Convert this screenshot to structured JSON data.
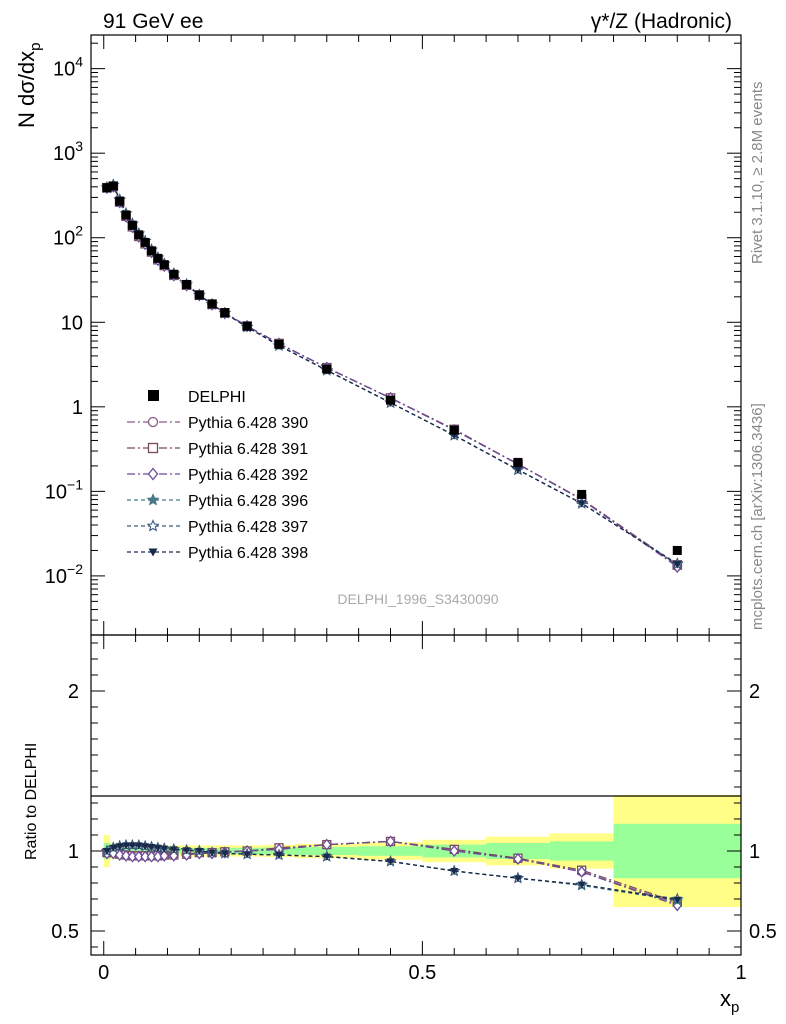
{
  "header": {
    "left": "91 GeV ee",
    "right": "γ*/Z (Hadronic)"
  },
  "side_text": {
    "rivet": "Rivet 3.1.10, ≥ 2.8M events",
    "site": "mcplots.cern.ch [arXiv:1306.3436]"
  },
  "watermark": "DELPHI_1996_S3430090",
  "colors": {
    "band_inner": "#99ff99",
    "band_outer": "#ffff88",
    "data": "#000000",
    "p390": "#8a5a8a",
    "p391": "#7a4a5a",
    "p392": "#6a4a9a",
    "p396": "#4a7a8a",
    "p397": "#3a5a7a",
    "p398": "#1a2a4a"
  },
  "chart_data": [
    {
      "type": "scatter",
      "name": "main",
      "ylabel": "N dσ/dx_p",
      "yscale": "log",
      "ylim": [
        0.002,
        25000
      ],
      "xlim": [
        -0.02,
        1.0
      ],
      "y_tick_labels": [
        "10^-2",
        "10^-1",
        "1",
        "10",
        "10^2",
        "10^3",
        "10^4"
      ],
      "legend": [
        "DELPHI",
        "Pythia 6.428 390",
        "Pythia 6.428 391",
        "Pythia 6.428 392",
        "Pythia 6.428 396",
        "Pythia 6.428 397",
        "Pythia 6.428 398"
      ],
      "x": [
        0.005,
        0.015,
        0.025,
        0.035,
        0.045,
        0.055,
        0.065,
        0.075,
        0.085,
        0.095,
        0.11,
        0.13,
        0.15,
        0.17,
        0.19,
        0.225,
        0.275,
        0.35,
        0.45,
        0.55,
        0.65,
        0.75,
        0.9
      ],
      "data": [
        390,
        410,
        270,
        185,
        140,
        108,
        88,
        70,
        57,
        48,
        37,
        28,
        21,
        16.5,
        13,
        9,
        5.5,
        2.8,
        1.2,
        0.53,
        0.22,
        0.092,
        0.02
      ],
      "series": [
        {
          "name": "Pythia 6.428 390",
          "color_key": "p390",
          "marker": "circle-open",
          "dash": "8,3,2,3",
          "values": [
            390,
            405,
            265,
            180,
            135,
            104,
            85,
            68,
            55,
            47,
            36,
            27.5,
            21,
            16.3,
            12.9,
            9,
            5.6,
            2.9,
            1.27,
            0.54,
            0.21,
            0.081,
            0.013
          ]
        },
        {
          "name": "Pythia 6.428 391",
          "color_key": "p391",
          "marker": "square-open",
          "dash": "8,3,2,3",
          "values": [
            390,
            405,
            265,
            180,
            135,
            104,
            85,
            68,
            55,
            47,
            36,
            27.5,
            21,
            16.3,
            12.9,
            9,
            5.6,
            2.9,
            1.27,
            0.54,
            0.21,
            0.081,
            0.0135
          ]
        },
        {
          "name": "Pythia 6.428 392",
          "color_key": "p392",
          "marker": "diamond-open",
          "dash": "8,3,2,3",
          "values": [
            388,
            403,
            263,
            178,
            134,
            103,
            84,
            67.5,
            54.5,
            46.5,
            35.8,
            27.3,
            20.9,
            16.2,
            12.8,
            9,
            5.6,
            2.9,
            1.27,
            0.53,
            0.21,
            0.08,
            0.0128
          ]
        },
        {
          "name": "Pythia 6.428 396",
          "color_key": "p396",
          "marker": "star-filled",
          "dash": "4,3",
          "values": [
            392,
            420,
            282,
            193,
            146,
            112,
            91,
            72,
            58,
            49,
            37.5,
            28,
            21,
            16.3,
            12.8,
            8.8,
            5.3,
            2.7,
            1.12,
            0.46,
            0.18,
            0.072,
            0.014
          ]
        },
        {
          "name": "Pythia 6.428 397",
          "color_key": "p397",
          "marker": "star-open",
          "dash": "4,3",
          "values": [
            392,
            420,
            282,
            193,
            146,
            112,
            91,
            72,
            58,
            49,
            37.5,
            28,
            21,
            16.3,
            12.8,
            8.8,
            5.3,
            2.7,
            1.12,
            0.46,
            0.18,
            0.072,
            0.0138
          ]
        },
        {
          "name": "Pythia 6.428 398",
          "color_key": "p398",
          "marker": "triangle-down",
          "dash": "4,3",
          "values": [
            392,
            420,
            282,
            193,
            146,
            112,
            91,
            72,
            58,
            49,
            37.5,
            28,
            21,
            16.3,
            12.8,
            8.8,
            5.3,
            2.7,
            1.12,
            0.46,
            0.18,
            0.072,
            0.0137
          ]
        }
      ]
    },
    {
      "type": "scatter",
      "name": "ratio",
      "ylabel": "Ratio to DELPHI",
      "xlabel": "x_p",
      "ylim": [
        0.35,
        2.35
      ],
      "xlim": [
        -0.02,
        1.0
      ],
      "x_tick_labels": [
        "0",
        "0.5",
        "1"
      ],
      "y_tick_labels": [
        "0.5",
        "1",
        "2"
      ],
      "bands": {
        "edges": [
          0.0,
          0.01,
          0.02,
          0.03,
          0.04,
          0.05,
          0.06,
          0.07,
          0.08,
          0.09,
          0.1,
          0.12,
          0.14,
          0.16,
          0.18,
          0.2,
          0.25,
          0.3,
          0.4,
          0.5,
          0.6,
          0.7,
          0.8,
          1.0
        ],
        "inner": [
          0.05,
          0.025,
          0.02,
          0.018,
          0.018,
          0.018,
          0.018,
          0.018,
          0.018,
          0.018,
          0.018,
          0.02,
          0.02,
          0.02,
          0.02,
          0.02,
          0.022,
          0.025,
          0.03,
          0.04,
          0.05,
          0.06,
          0.17
        ],
        "outer": [
          0.1,
          0.05,
          0.04,
          0.035,
          0.035,
          0.035,
          0.035,
          0.035,
          0.035,
          0.035,
          0.035,
          0.035,
          0.035,
          0.035,
          0.035,
          0.035,
          0.038,
          0.045,
          0.055,
          0.07,
          0.09,
          0.11,
          0.35
        ]
      },
      "series": [
        {
          "name": "Pythia 6.428 390",
          "values": [
            0.99,
            0.99,
            0.98,
            0.975,
            0.97,
            0.97,
            0.97,
            0.97,
            0.97,
            0.975,
            0.975,
            0.98,
            0.99,
            0.99,
            0.995,
            1.0,
            1.01,
            1.04,
            1.06,
            1.01,
            0.95,
            0.87,
            0.67
          ]
        },
        {
          "name": "Pythia 6.428 391",
          "values": [
            0.99,
            0.99,
            0.98,
            0.975,
            0.97,
            0.97,
            0.97,
            0.97,
            0.97,
            0.975,
            0.975,
            0.98,
            0.99,
            0.99,
            0.995,
            1.0,
            1.02,
            1.04,
            1.06,
            1.01,
            0.955,
            0.88,
            0.68
          ]
        },
        {
          "name": "Pythia 6.428 392",
          "values": [
            0.985,
            0.985,
            0.975,
            0.97,
            0.965,
            0.965,
            0.965,
            0.965,
            0.965,
            0.97,
            0.97,
            0.975,
            0.985,
            0.985,
            0.99,
            1.0,
            1.01,
            1.04,
            1.06,
            1.0,
            0.95,
            0.87,
            0.66
          ]
        },
        {
          "name": "Pythia 6.428 396",
          "values": [
            1.0,
            1.02,
            1.03,
            1.035,
            1.035,
            1.035,
            1.03,
            1.025,
            1.02,
            1.015,
            1.01,
            1.005,
            1.0,
            0.99,
            0.985,
            0.98,
            0.975,
            0.965,
            0.935,
            0.875,
            0.83,
            0.785,
            0.69
          ]
        },
        {
          "name": "Pythia 6.428 397",
          "values": [
            1.0,
            1.02,
            1.03,
            1.035,
            1.035,
            1.035,
            1.03,
            1.025,
            1.02,
            1.015,
            1.01,
            1.005,
            1.0,
            0.99,
            0.985,
            0.98,
            0.975,
            0.965,
            0.935,
            0.875,
            0.83,
            0.79,
            0.7
          ]
        },
        {
          "name": "Pythia 6.428 398",
          "values": [
            1.0,
            1.02,
            1.03,
            1.035,
            1.035,
            1.035,
            1.03,
            1.025,
            1.02,
            1.015,
            1.01,
            1.005,
            1.0,
            0.99,
            0.985,
            0.98,
            0.975,
            0.965,
            0.935,
            0.875,
            0.83,
            0.79,
            0.695
          ]
        }
      ]
    }
  ]
}
